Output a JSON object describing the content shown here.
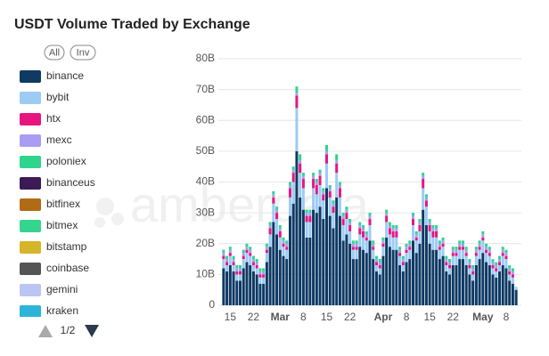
{
  "chart_data": {
    "type": "stacked-bar",
    "title": "USDT Volume Traded by Exchange",
    "buttons": [
      "All",
      "Inv"
    ],
    "pager": "1/2",
    "watermark": "amberdata",
    "categories": [
      null,
      null,
      "15",
      null,
      null,
      null,
      null,
      null,
      null,
      "22",
      null,
      null,
      null,
      null,
      null,
      null,
      null,
      "Mar",
      null,
      null,
      null,
      null,
      null,
      null,
      "8",
      null,
      null,
      null,
      null,
      null,
      null,
      "15",
      null,
      null,
      null,
      null,
      null,
      null,
      "22",
      null,
      null,
      null,
      null,
      null,
      null,
      null,
      null,
      null,
      "Apr",
      null,
      null,
      null,
      null,
      null,
      null,
      "8",
      null,
      null,
      null,
      null,
      null,
      null,
      "15",
      null,
      null,
      null,
      null,
      null,
      null,
      "22",
      null,
      null,
      null,
      null,
      null,
      null,
      null,
      null,
      "May",
      null,
      null,
      null,
      null,
      null,
      null,
      "8",
      null,
      null,
      null
    ],
    "ylim": [
      0,
      80
    ],
    "yticks": [
      0,
      {
        "value": 10,
        "label": "10B"
      },
      {
        "value": 20,
        "label": "20B"
      },
      {
        "value": 30,
        "label": "30B"
      },
      {
        "value": 40,
        "label": "40B"
      },
      {
        "value": 50,
        "label": "50B"
      },
      {
        "value": 60,
        "label": "60B"
      },
      {
        "value": 70,
        "label": "70B"
      },
      {
        "value": 80,
        "label": "80B"
      }
    ],
    "grid": true,
    "series": [
      {
        "name": "binance",
        "color": "#0e3a64",
        "values": [
          12,
          11,
          13,
          11,
          8,
          8,
          12,
          14,
          13,
          11,
          10,
          7,
          7,
          14,
          19,
          27,
          23,
          18,
          16,
          15,
          29,
          33,
          50,
          35,
          31,
          22,
          22,
          31,
          30,
          32,
          28,
          38,
          29,
          25,
          35,
          29,
          21,
          23,
          20,
          15,
          15,
          19,
          18,
          17,
          21,
          15,
          11,
          10,
          16,
          22,
          19,
          18,
          18,
          13,
          11,
          14,
          15,
          21,
          17,
          20,
          31,
          26,
          20,
          18,
          18,
          15,
          16,
          11,
          10,
          13,
          13,
          15,
          15,
          13,
          10,
          8,
          13,
          15,
          17,
          14,
          13,
          10,
          9,
          11,
          13,
          12,
          8,
          7,
          5
        ]
      },
      {
        "name": "bybit",
        "color": "#9ccbf4",
        "values": [
          3,
          2,
          3,
          2,
          2,
          2,
          3,
          3,
          3,
          2,
          2,
          2,
          2,
          3,
          4,
          6,
          5,
          4,
          3,
          3,
          6,
          7,
          14,
          8,
          7,
          5,
          5,
          7,
          6,
          7,
          6,
          8,
          6,
          5,
          8,
          6,
          5,
          5,
          4,
          3,
          3,
          4,
          4,
          4,
          5,
          3,
          2,
          2,
          3,
          5,
          4,
          4,
          4,
          3,
          2,
          3,
          3,
          5,
          4,
          4,
          7,
          6,
          4,
          4,
          4,
          3,
          3,
          2,
          2,
          3,
          3,
          3,
          3,
          3,
          2,
          2,
          3,
          3,
          4,
          3,
          3,
          2,
          2,
          2,
          3,
          3,
          2,
          2,
          1
        ]
      },
      {
        "name": "htx",
        "color": "#e5177f",
        "values": [
          1,
          1,
          1,
          1,
          1,
          1,
          1,
          1,
          1,
          1,
          1,
          1,
          1,
          1,
          2,
          2,
          2,
          2,
          1,
          1,
          3,
          3,
          4,
          3,
          3,
          2,
          2,
          3,
          3,
          3,
          2,
          3,
          2,
          2,
          3,
          3,
          2,
          2,
          2,
          1,
          1,
          2,
          2,
          1,
          2,
          1,
          1,
          1,
          1,
          2,
          2,
          2,
          2,
          1,
          1,
          1,
          1,
          2,
          1,
          2,
          3,
          2,
          2,
          2,
          2,
          1,
          1,
          1,
          1,
          1,
          1,
          1,
          1,
          1,
          1,
          1,
          1,
          1,
          1,
          1,
          1,
          1,
          1,
          1,
          1,
          1,
          1,
          1,
          0
        ]
      },
      {
        "name": "mexc",
        "color": "#a99cf3",
        "values": [
          1,
          1,
          1,
          1,
          1,
          1,
          1,
          1,
          1,
          1,
          1,
          1,
          1,
          1,
          1,
          1,
          1,
          1,
          1,
          1,
          1,
          1,
          1,
          1,
          1,
          1,
          1,
          1,
          1,
          1,
          1,
          1,
          1,
          1,
          1,
          1,
          1,
          1,
          1,
          1,
          1,
          1,
          1,
          1,
          1,
          1,
          1,
          1,
          1,
          1,
          1,
          1,
          1,
          1,
          1,
          1,
          1,
          1,
          1,
          1,
          1,
          1,
          1,
          1,
          1,
          1,
          1,
          1,
          1,
          1,
          1,
          1,
          1,
          1,
          1,
          1,
          1,
          1,
          1,
          1,
          1,
          1,
          1,
          1,
          1,
          1,
          1,
          1,
          0
        ]
      },
      {
        "name": "poloniex",
        "color": "#2fd58c",
        "values": [
          1,
          1,
          1,
          1,
          1,
          1,
          1,
          1,
          1,
          1,
          1,
          1,
          1,
          1,
          1,
          1,
          1,
          1,
          1,
          1,
          1,
          1,
          2,
          2,
          1,
          1,
          1,
          1,
          1,
          1,
          1,
          2,
          1,
          1,
          2,
          1,
          1,
          1,
          1,
          1,
          1,
          1,
          1,
          1,
          1,
          1,
          1,
          1,
          1,
          1,
          1,
          1,
          1,
          1,
          1,
          1,
          1,
          1,
          1,
          1,
          1,
          1,
          1,
          1,
          1,
          1,
          1,
          1,
          1,
          1,
          1,
          1,
          1,
          1,
          1,
          1,
          1,
          1,
          1,
          1,
          1,
          1,
          1,
          1,
          1,
          1,
          1,
          1,
          0
        ]
      },
      {
        "name": "binanceus",
        "color": "#3b1a55",
        "values": [
          0,
          0,
          0,
          0,
          0,
          0,
          0,
          0,
          0,
          0,
          0,
          0,
          0,
          0,
          0,
          0,
          0,
          0,
          0,
          0,
          0,
          0,
          0,
          0,
          0,
          0,
          0,
          0,
          0,
          0,
          0,
          0,
          0,
          0,
          0,
          0,
          0,
          0,
          0,
          0,
          0,
          0,
          0,
          0,
          0,
          0,
          0,
          0,
          0,
          0,
          0,
          0,
          0,
          0,
          0,
          0,
          0,
          0,
          0,
          0,
          0,
          0,
          0,
          0,
          0,
          0,
          0,
          0,
          0,
          0,
          0,
          0,
          0,
          0,
          0,
          0,
          0,
          0,
          0,
          0,
          0,
          0,
          0,
          0,
          0,
          0,
          0,
          0,
          0
        ]
      },
      {
        "name": "bitfinex",
        "color": "#b06b14",
        "values": [
          0,
          0,
          0,
          0,
          0,
          0,
          0,
          0,
          0,
          0,
          0,
          0,
          0,
          0,
          0,
          0,
          0,
          0,
          0,
          0,
          0,
          0,
          0,
          0,
          0,
          0,
          0,
          0,
          0,
          0,
          0,
          0,
          0,
          0,
          0,
          0,
          0,
          0,
          0,
          0,
          0,
          0,
          0,
          0,
          0,
          0,
          0,
          0,
          0,
          0,
          0,
          0,
          0,
          0,
          0,
          0,
          0,
          0,
          0,
          0,
          0,
          0,
          0,
          0,
          0,
          0,
          0,
          0,
          0,
          0,
          0,
          0,
          0,
          0,
          0,
          0,
          0,
          0,
          0,
          0,
          0,
          0,
          0,
          0,
          0,
          0,
          0,
          0,
          0
        ]
      },
      {
        "name": "bitmex",
        "color": "#35d58f",
        "values": [
          0,
          0,
          0,
          0,
          0,
          0,
          0,
          0,
          0,
          0,
          0,
          0,
          0,
          0,
          0,
          0,
          0,
          0,
          0,
          0,
          0,
          0,
          0,
          0,
          0,
          0,
          0,
          0,
          0,
          0,
          0,
          0,
          0,
          0,
          0,
          0,
          0,
          0,
          0,
          0,
          0,
          0,
          0,
          0,
          0,
          0,
          0,
          0,
          0,
          0,
          0,
          0,
          0,
          0,
          0,
          0,
          0,
          0,
          0,
          0,
          0,
          0,
          0,
          0,
          0,
          0,
          0,
          0,
          0,
          0,
          0,
          0,
          0,
          0,
          0,
          0,
          0,
          0,
          0,
          0,
          0,
          0,
          0,
          0,
          0,
          0,
          0,
          0,
          0
        ]
      },
      {
        "name": "bitstamp",
        "color": "#d5b52a",
        "values": [
          0,
          0,
          0,
          0,
          0,
          0,
          0,
          0,
          0,
          0,
          0,
          0,
          0,
          0,
          0,
          0,
          0,
          0,
          0,
          0,
          0,
          0,
          0,
          0,
          0,
          0,
          0,
          0,
          0,
          0,
          0,
          0,
          0,
          0,
          0,
          0,
          0,
          0,
          0,
          0,
          0,
          0,
          0,
          0,
          0,
          0,
          0,
          0,
          0,
          0,
          0,
          0,
          0,
          0,
          0,
          0,
          0,
          0,
          0,
          0,
          0,
          0,
          0,
          0,
          0,
          0,
          0,
          0,
          0,
          0,
          0,
          0,
          0,
          0,
          0,
          0,
          0,
          0,
          0,
          0,
          0,
          0,
          0,
          0,
          0,
          0,
          0,
          0,
          0
        ]
      },
      {
        "name": "coinbase",
        "color": "#555555",
        "values": [
          0,
          0,
          0,
          0,
          0,
          0,
          0,
          0,
          0,
          0,
          0,
          0,
          0,
          0,
          0,
          0,
          0,
          0,
          0,
          0,
          0,
          0,
          0,
          0,
          0,
          0,
          0,
          0,
          0,
          0,
          0,
          0,
          0,
          0,
          0,
          0,
          0,
          0,
          0,
          0,
          0,
          0,
          0,
          0,
          0,
          0,
          0,
          0,
          0,
          0,
          0,
          0,
          0,
          0,
          0,
          0,
          0,
          0,
          0,
          0,
          0,
          0,
          0,
          0,
          0,
          0,
          0,
          0,
          0,
          0,
          0,
          0,
          0,
          0,
          0,
          0,
          0,
          0,
          0,
          0,
          0,
          0,
          0,
          0,
          0,
          0,
          0,
          0,
          0
        ]
      },
      {
        "name": "gemini",
        "color": "#bac5f3",
        "values": [
          0,
          0,
          0,
          0,
          0,
          0,
          0,
          0,
          0,
          0,
          0,
          0,
          0,
          0,
          0,
          0,
          0,
          0,
          0,
          0,
          0,
          0,
          0,
          0,
          0,
          0,
          0,
          0,
          0,
          0,
          0,
          0,
          0,
          0,
          0,
          0,
          0,
          0,
          0,
          0,
          0,
          0,
          0,
          0,
          0,
          0,
          0,
          0,
          0,
          0,
          0,
          0,
          0,
          0,
          0,
          0,
          0,
          0,
          0,
          0,
          0,
          0,
          0,
          0,
          0,
          0,
          0,
          0,
          0,
          0,
          0,
          0,
          0,
          0,
          0,
          0,
          0,
          0,
          0,
          0,
          0,
          0,
          0,
          0,
          0,
          0,
          0,
          0,
          0
        ]
      },
      {
        "name": "kraken",
        "color": "#2bb4d8",
        "values": [
          0,
          0,
          0,
          0,
          0,
          0,
          0,
          0,
          0,
          0,
          0,
          0,
          0,
          0,
          0,
          0,
          0,
          0,
          0,
          0,
          0,
          0,
          0,
          0,
          0,
          0,
          0,
          0,
          0,
          0,
          0,
          0,
          0,
          0,
          0,
          0,
          0,
          0,
          0,
          0,
          0,
          0,
          0,
          0,
          0,
          0,
          0,
          0,
          0,
          0,
          0,
          0,
          0,
          0,
          0,
          0,
          0,
          0,
          0,
          0,
          0,
          0,
          0,
          0,
          0,
          0,
          0,
          0,
          0,
          0,
          0,
          0,
          0,
          0,
          0,
          0,
          0,
          0,
          0,
          0,
          0,
          0,
          0,
          0,
          0,
          0,
          0,
          0,
          0
        ]
      }
    ]
  }
}
